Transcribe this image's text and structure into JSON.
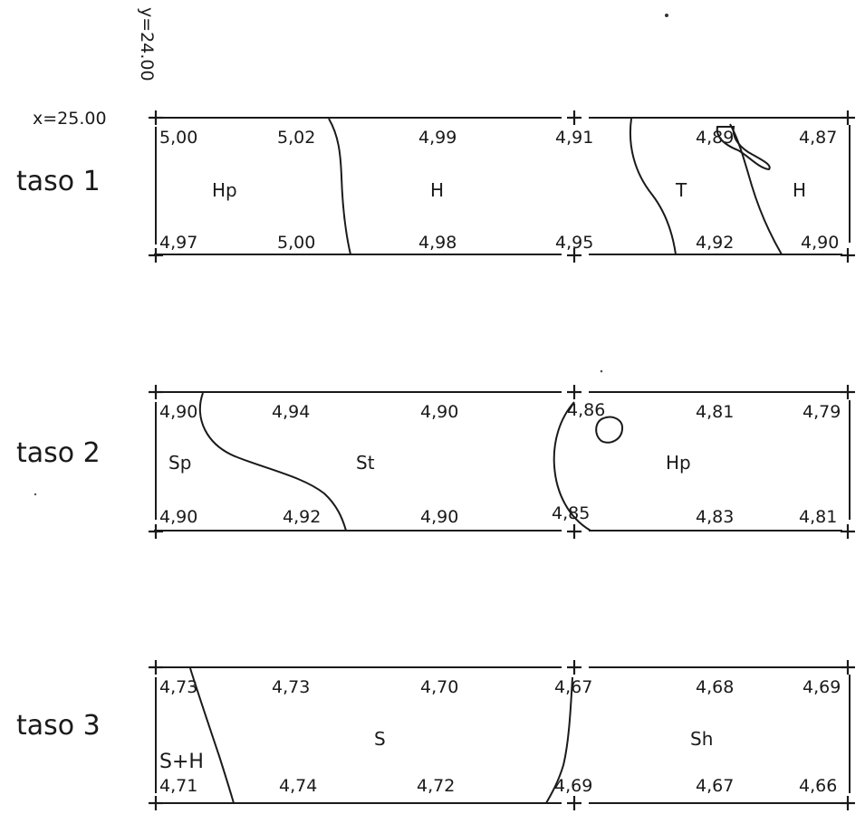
{
  "coords": {
    "y": "y=24.00",
    "x": "x=25.00"
  },
  "layers": [
    {
      "label": "taso 1",
      "top_values": [
        "5,00",
        "5,02",
        "4,99",
        "4,91",
        "4,89",
        "4,87"
      ],
      "bottom_values": [
        "4,97",
        "5,00",
        "4,98",
        "4,95",
        "4,92",
        "4,90"
      ],
      "soils": [
        "Hp",
        "H",
        "T",
        "H"
      ]
    },
    {
      "label": "taso 2",
      "top_values": [
        "4,90",
        "4,94",
        "4,90",
        "4,86",
        "4,81",
        "4,79"
      ],
      "bottom_values": [
        "4,90",
        "4,92",
        "4,90",
        "4,85",
        "4,83",
        "4,81"
      ],
      "soils": [
        "Sp",
        "St",
        "Hp"
      ]
    },
    {
      "label": "taso 3",
      "top_values": [
        "4,73",
        "4,73",
        "4,70",
        "4,67",
        "4,68",
        "4,69"
      ],
      "bottom_values": [
        "4,71",
        "4,74",
        "4,72",
        "4,69",
        "4,67",
        "4,66"
      ],
      "soils": [
        "S+H",
        "S",
        "Sh"
      ]
    }
  ]
}
